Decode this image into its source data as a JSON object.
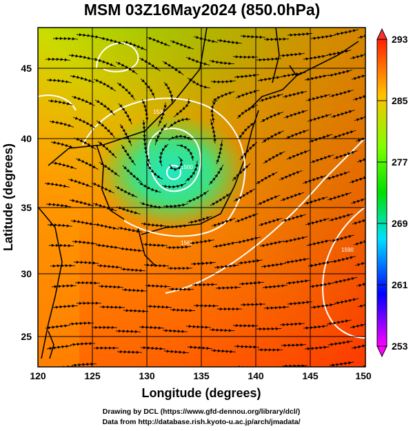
{
  "title": "MSM 03Z16May2024 (850.0hPa)",
  "x_axis": {
    "label": "Longitude (degrees)",
    "range": [
      120,
      150
    ],
    "ticks": [
      "120",
      "125",
      "130",
      "135",
      "140",
      "145",
      "150"
    ]
  },
  "y_axis": {
    "label": "Latitude  (degrees)",
    "range": [
      22.4,
      47.6
    ],
    "ticks": [
      "25",
      "30",
      "35",
      "40",
      "45"
    ]
  },
  "colorbar": {
    "range": [
      253,
      293
    ],
    "labels": [
      "293",
      "285",
      "277",
      "269",
      "261",
      "253"
    ],
    "colors": [
      "#ff00ff",
      "#0000ff",
      "#00e0ff",
      "#00ff80",
      "#80ff00",
      "#ffc000",
      "#ff0000"
    ]
  },
  "contour_labels": [
    "1530",
    "1500",
    "1560",
    "1590"
  ],
  "credits": {
    "line1": "Drawing by DCL (https://www.gfd-dennou.org/library/dcl/)",
    "line2": "Data from http://database.rish.kyoto-u.ac.jp/arch/jmadata/"
  },
  "map": {
    "low_center": [
      132.5,
      37.5
    ]
  }
}
